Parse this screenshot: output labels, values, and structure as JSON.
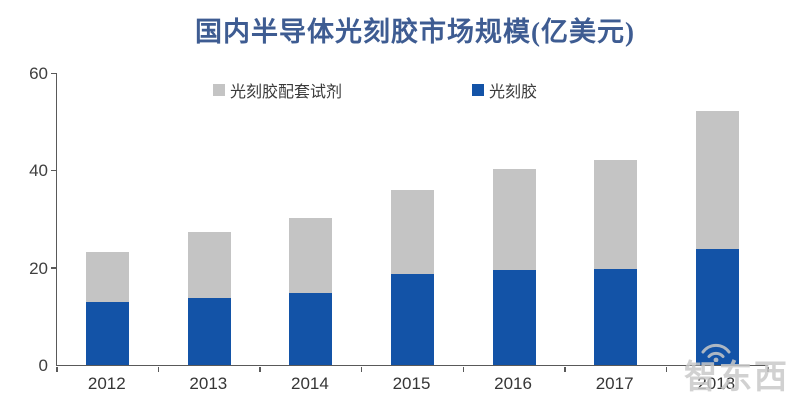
{
  "title": "国内半导体光刻胶市场规模(亿美元)",
  "watermark": {
    "text": "智东西",
    "icon": "wifi-icon"
  },
  "colors": {
    "photoresist_blue": "#1353A7",
    "reagent_gray": "#C4C4C4",
    "title_blue": "#3E5C92",
    "axis": "#595959"
  },
  "chart_data": {
    "type": "bar",
    "stacked": true,
    "title": "国内半导体光刻胶市场规模(亿美元)",
    "categories": [
      "2012",
      "2013",
      "2014",
      "2015",
      "2016",
      "2017",
      "2018"
    ],
    "series": [
      {
        "name": "光刻胶",
        "color": "#1353A7",
        "values": [
          13.0,
          13.7,
          14.9,
          18.7,
          19.6,
          19.7,
          23.8
        ]
      },
      {
        "name": "光刻胶配套试剂",
        "color": "#C4C4C4",
        "values": [
          10.2,
          13.6,
          15.3,
          17.3,
          20.7,
          22.4,
          28.5
        ]
      }
    ],
    "stack_totals": [
      23.2,
      27.3,
      30.2,
      36.0,
      40.3,
      42.1,
      52.3
    ],
    "ylim": [
      0,
      60
    ],
    "yticks": [
      0,
      20,
      40,
      60
    ],
    "xlabel": "",
    "ylabel": "",
    "grid": false,
    "legend": {
      "position": "top",
      "items": [
        "光刻胶配套试剂",
        "光刻胶"
      ]
    }
  }
}
